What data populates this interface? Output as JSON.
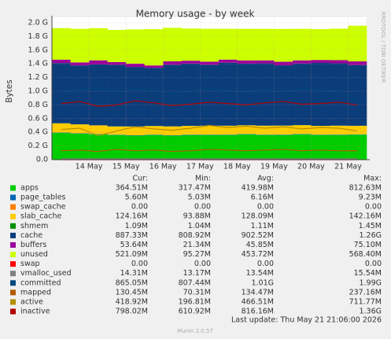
{
  "chart_data": {
    "type": "area",
    "title": "Memory usage - by week",
    "y_label": "Bytes",
    "side_text": "RRDTOOL / TOBI OETIKER",
    "footer": "Last update: Thu May 21 21:06:00 2026",
    "version": "Munin 2.0.57",
    "legend_headers": [
      "Cur:",
      "Min:",
      "Avg:",
      "Max:"
    ],
    "categories": [
      null,
      null,
      "14 May",
      null,
      "15 May",
      null,
      "16 May",
      null,
      "17 May",
      null,
      "18 May",
      null,
      "19 May",
      null,
      "20 May",
      null,
      "21 May"
    ],
    "ylim": [
      0,
      2000000000.0
    ],
    "yticks": [
      {
        "value": 0,
        "label": "0.0"
      },
      {
        "value": 200000000.0,
        "label": "0.2 G"
      },
      {
        "value": 400000000.0,
        "label": "0.4 G"
      },
      {
        "value": 600000000.0,
        "label": "0.6 G"
      },
      {
        "value": 800000000.0,
        "label": "0.8 G"
      },
      {
        "value": 1000000000.0,
        "label": "1.0 G"
      },
      {
        "value": 1200000000.0,
        "label": "1.2 G"
      },
      {
        "value": 1400000000.0,
        "label": "1.4 G"
      },
      {
        "value": 1600000000.0,
        "label": "1.6 G"
      },
      {
        "value": 1800000000.0,
        "label": "1.8 G"
      },
      {
        "value": 2000000000.0,
        "label": "2.0 G"
      }
    ],
    "grid": true,
    "series": [
      {
        "name": "apps",
        "color": "#00cc00",
        "style": "area",
        "cur": "364.51M",
        "min": "317.47M",
        "avg": "419.98M",
        "max": "812.63M",
        "values": [
          390000000.0,
          380000000.0,
          370000000.0,
          360000000.0,
          350000000.0,
          360000000.0,
          350000000.0,
          360000000.0,
          360000000.0,
          360000000.0,
          370000000.0,
          360000000.0,
          360000000.0,
          370000000.0,
          360000000.0,
          360000000.0,
          365000000.0
        ]
      },
      {
        "name": "page_tables",
        "color": "#0066b3",
        "style": "area",
        "cur": "5.60M",
        "min": "5.03M",
        "avg": "6.16M",
        "max": "9.23M",
        "values": [
          5800000.0,
          5600000.0,
          5700000.0,
          5500000.0,
          6200000.0,
          6100000.0,
          6000000.0,
          6300000.0,
          6200000.0,
          6400000.0,
          6100000.0,
          6200000.0,
          6500000.0,
          6300000.0,
          6200000.0,
          6400000.0,
          5600000.0
        ]
      },
      {
        "name": "swap_cache",
        "color": "#ff8000",
        "style": "area",
        "cur": "0.00",
        "min": "0.00",
        "avg": "0.00",
        "max": "0.00",
        "values": [
          0,
          0,
          0,
          0,
          0,
          0,
          0,
          0,
          0,
          0,
          0,
          0,
          0,
          0,
          0,
          0,
          0
        ]
      },
      {
        "name": "slab_cache",
        "color": "#ffcc00",
        "style": "area",
        "cur": "124.16M",
        "min": "93.88M",
        "avg": "128.09M",
        "max": "142.16M",
        "values": [
          135000000.0,
          130000000.0,
          125000000.0,
          120000000.0,
          128000000.0,
          125000000.0,
          130000000.0,
          127000000.0,
          130000000.0,
          129000000.0,
          126000000.0,
          130000000.0,
          131000000.0,
          128000000.0,
          127000000.0,
          130000000.0,
          124000000.0
        ]
      },
      {
        "name": "shmem",
        "color": "#008f00",
        "style": "area",
        "cur": "1.09M",
        "min": "1.04M",
        "avg": "1.11M",
        "max": "1.45M",
        "values": [
          1100000.0,
          1100000.0,
          1100000.0,
          1100000.0,
          1100000.0,
          1100000.0,
          1100000.0,
          1100000.0,
          1100000.0,
          1100000.0,
          1100000.0,
          1100000.0,
          1100000.0,
          1100000.0,
          1100000.0,
          1100000.0,
          1090000.0
        ]
      },
      {
        "name": "cache",
        "color": "#0b3d7a",
        "style": "area",
        "cur": "887.33M",
        "min": "808.92M",
        "avg": "902.52M",
        "max": "1.26G",
        "values": [
          880000000.0,
          860000000.0,
          890000000.0,
          900000000.0,
          870000000.0,
          850000000.0,
          900000000.0,
          910000000.0,
          890000000.0,
          920000000.0,
          900000000.0,
          910000000.0,
          880000000.0,
          900000000.0,
          920000000.0,
          910000000.0,
          887000000.0
        ]
      },
      {
        "name": "buffers",
        "color": "#990099",
        "style": "area",
        "cur": "53.64M",
        "min": "21.34M",
        "avg": "45.85M",
        "max": "75.10M",
        "values": [
          50000000.0,
          45000000.0,
          60000000.0,
          40000000.0,
          48000000.0,
          35000000.0,
          50000000.0,
          42000000.0,
          45000000.0,
          46000000.0,
          48000000.0,
          44000000.0,
          52000000.0,
          46000000.0,
          43000000.0,
          47000000.0,
          53600000.0
        ]
      },
      {
        "name": "unused",
        "color": "#ccff00",
        "style": "area",
        "cur": "521.09M",
        "min": "95.27M",
        "avg": "453.72M",
        "max": "568.40M",
        "values": [
          460000000.0,
          490000000.0,
          470000000.0,
          470000000.0,
          500000000.0,
          530000000.0,
          490000000.0,
          470000000.0,
          480000000.0,
          450000000.0,
          460000000.0,
          460000000.0,
          480000000.0,
          460000000.0,
          450000000.0,
          460000000.0,
          521000000.0
        ]
      },
      {
        "name": "swap",
        "color": "#ff0000",
        "style": "line",
        "cur": "0.00",
        "min": "0.00",
        "avg": "0.00",
        "max": "0.00",
        "values": [
          0,
          0,
          0,
          0,
          0,
          0,
          0,
          0,
          0,
          0,
          0,
          0,
          0,
          0,
          0,
          0,
          0
        ]
      },
      {
        "name": "vmalloc_used",
        "color": "#808080",
        "style": "line",
        "cur": "14.31M",
        "min": "13.17M",
        "avg": "13.54M",
        "max": "15.54M",
        "values": [
          13500000.0,
          13400000.0,
          13600000.0,
          13500000.0,
          13300000.0,
          13500000.0,
          13600000.0,
          13500000.0,
          13400000.0,
          13500000.0,
          13600000.0,
          13500000.0,
          13400000.0,
          13500000.0,
          13600000.0,
          13500000.0,
          14300000.0
        ]
      },
      {
        "name": "committed",
        "color": "#00487d",
        "style": "line",
        "cur": "865.05M",
        "min": "807.44M",
        "avg": "1.01G",
        "max": "1.99G",
        "values": [
          980000000.0,
          1020000000.0,
          1050000000.0,
          990000000.0,
          1030000000.0,
          1010000000.0,
          970000000.0,
          1000000000.0,
          1040000000.0,
          1010000000.0,
          990000000.0,
          1020000000.0,
          1000000000.0,
          1030000000.0,
          1010000000.0,
          1000000000.0,
          865000000.0
        ]
      },
      {
        "name": "mapped",
        "color": "#b35a00",
        "style": "line",
        "cur": "130.45M",
        "min": "70.31M",
        "avg": "134.47M",
        "max": "237.16M",
        "values": [
          130000000.0,
          140000000.0,
          120000000.0,
          150000000.0,
          130000000.0,
          140000000.0,
          120000000.0,
          130000000.0,
          150000000.0,
          140000000.0,
          130000000.0,
          140000000.0,
          150000000.0,
          130000000.0,
          140000000.0,
          130000000.0,
          130450000.0
        ]
      },
      {
        "name": "active",
        "color": "#b38f00",
        "style": "line",
        "cur": "418.92M",
        "min": "196.81M",
        "avg": "466.51M",
        "max": "711.77M",
        "values": [
          440000000.0,
          460000000.0,
          350000000.0,
          420000000.0,
          480000000.0,
          450000000.0,
          430000000.0,
          460000000.0,
          500000000.0,
          470000000.0,
          490000000.0,
          460000000.0,
          480000000.0,
          450000000.0,
          470000000.0,
          460000000.0,
          419000000.0
        ]
      },
      {
        "name": "inactive",
        "color": "#b30000",
        "style": "line",
        "cur": "798.02M",
        "min": "610.92M",
        "avg": "816.16M",
        "max": "1.36G",
        "values": [
          820000000.0,
          850000000.0,
          780000000.0,
          800000000.0,
          860000000.0,
          830000000.0,
          790000000.0,
          810000000.0,
          840000000.0,
          820000000.0,
          800000000.0,
          830000000.0,
          850000000.0,
          810000000.0,
          820000000.0,
          840000000.0,
          798000000.0
        ]
      }
    ]
  }
}
